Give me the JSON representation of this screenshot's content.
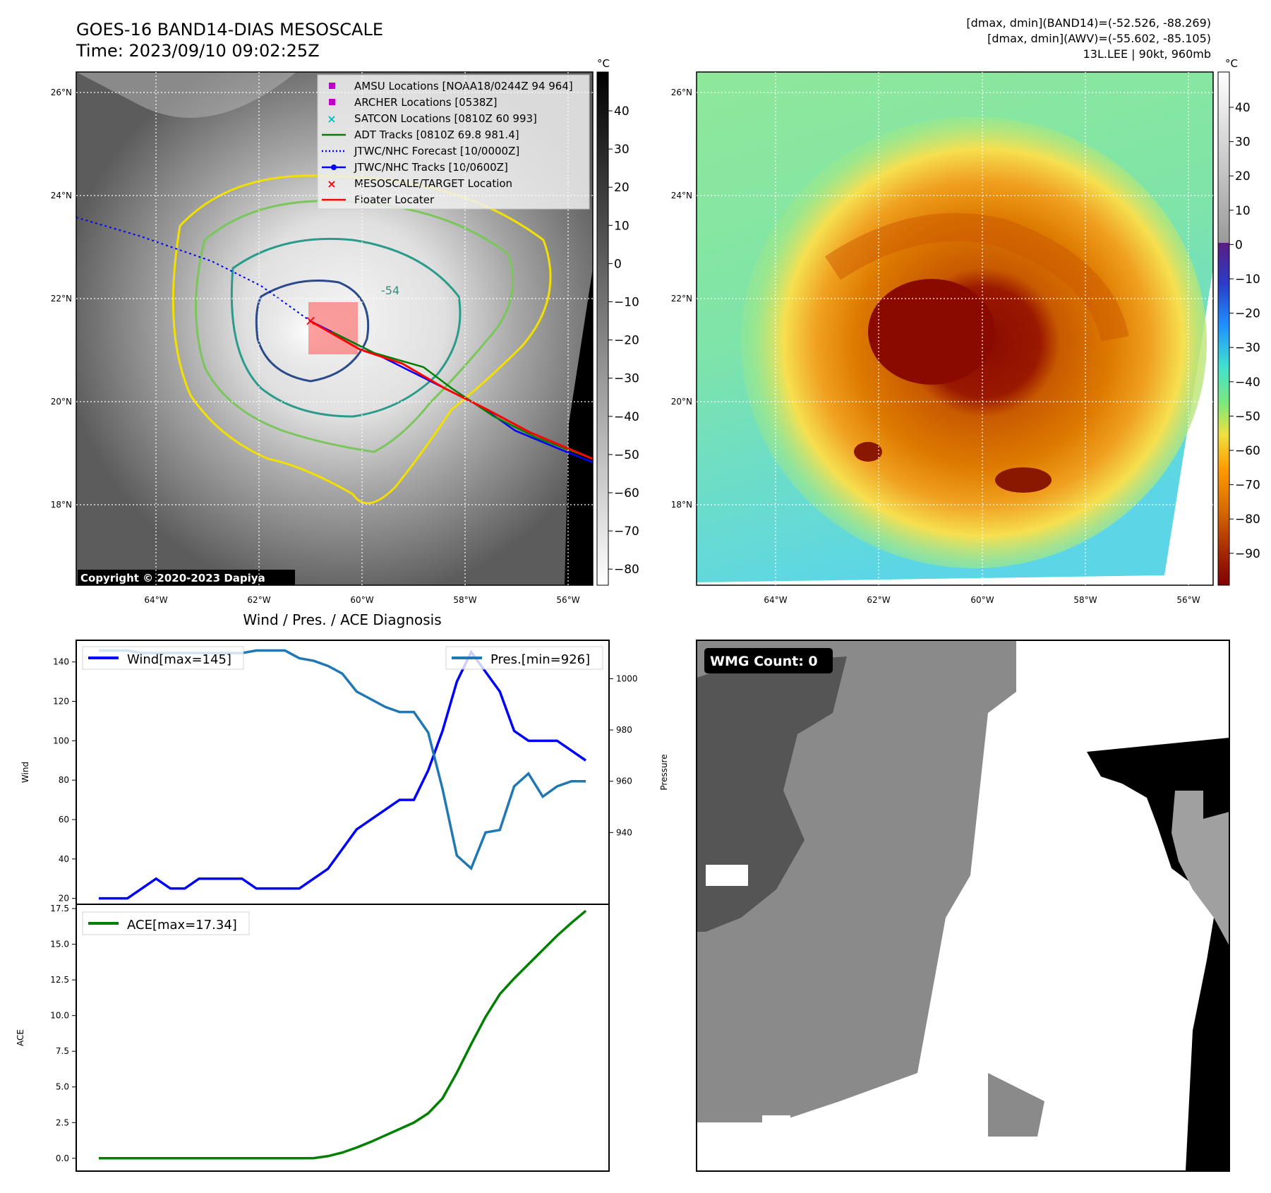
{
  "header": {
    "title": "GOES-16 BAND14-DIAS MESOSCALE",
    "time": "Time: 2023/09/10 09:02:25Z",
    "stats_band14": "[dmax, dmin](BAND14)=(-52.526, -88.269)",
    "stats_awv": "[dmax, dmin](AWV)=(-55.602, -85.105)",
    "storm": "13L.LEE | 90kt, 960mb"
  },
  "map": {
    "lat_labels": [
      "26°N",
      "24°N",
      "22°N",
      "20°N",
      "18°N"
    ],
    "lon_labels": [
      "64°W",
      "62°W",
      "60°W",
      "58°W",
      "56°W"
    ],
    "copyright": "Copyright © 2020-2023 Dapiya",
    "contour_label": "-54",
    "legend": [
      {
        "label": "AMSU Locations [NOAA18/0244Z 94 964]",
        "marker": "square",
        "color": "#c000c0"
      },
      {
        "label": "ARCHER Locations [0538Z]",
        "marker": "square",
        "color": "#c000c0"
      },
      {
        "label": "SATCON Locations [0810Z 60 993]",
        "marker": "x",
        "color": "#00bfbf"
      },
      {
        "label": "ADT Tracks [0810Z 69.8 981.4]",
        "marker": "line",
        "color": "#008000"
      },
      {
        "label": "JTWC/NHC Forecast [10/0000Z]",
        "marker": "dotted",
        "color": "#0000ff"
      },
      {
        "label": "JTWC/NHC Tracks [10/0600Z]",
        "marker": "line-dot",
        "color": "#0000ff"
      },
      {
        "label": "MESOSCALE/TARGET Location",
        "marker": "x",
        "color": "#ff0000"
      },
      {
        "label": "Floater Locater",
        "marker": "line",
        "color": "#ff0000"
      }
    ]
  },
  "colorbars": {
    "unit": "°C",
    "left_ticks": [
      "40",
      "30",
      "20",
      "10",
      "0",
      "−10",
      "−20",
      "−30",
      "−40",
      "−50",
      "−60",
      "−70",
      "−80"
    ],
    "right_ticks": [
      "40",
      "30",
      "20",
      "10",
      "0",
      "−10",
      "−20",
      "−30",
      "−40",
      "−50",
      "−60",
      "−70",
      "−80",
      "−90"
    ]
  },
  "wmg": {
    "label": "WMG Count: 0"
  },
  "chart_data": [
    {
      "type": "line",
      "title": "Wind / Pres. / ACE Diagnosis",
      "ylabel": "Wind",
      "y2label": "Pressure",
      "ylim": [
        17,
        151
      ],
      "y2lim": [
        912,
        1015
      ],
      "yticks": [
        20,
        40,
        60,
        80,
        100,
        120,
        140
      ],
      "y2ticks": [
        940,
        960,
        980,
        1000
      ],
      "series": [
        {
          "name": "Wind[max=145]",
          "color": "#0000ff",
          "axis": "left",
          "values": [
            20,
            20,
            20,
            25,
            30,
            25,
            25,
            30,
            30,
            30,
            30,
            25,
            25,
            25,
            25,
            30,
            35,
            45,
            55,
            60,
            65,
            70,
            70,
            85,
            105,
            130,
            145,
            135,
            125,
            105,
            100,
            100,
            100,
            95,
            90
          ]
        },
        {
          "name": "Pres.[min=926]",
          "color": "#1f77b4",
          "axis": "right",
          "values": [
            1011,
            1011,
            1011,
            1010,
            1010,
            1010,
            1010,
            1010,
            1010,
            1010,
            1010,
            1011,
            1011,
            1011,
            1008,
            1007,
            1005,
            1002,
            995,
            992,
            989,
            987,
            987,
            979,
            957,
            931,
            926,
            940,
            941,
            958,
            963,
            954,
            958,
            960,
            960
          ]
        }
      ]
    },
    {
      "type": "line",
      "ylabel": "ACE",
      "ylim": [
        -0.9,
        17.8
      ],
      "yticks": [
        "0.0",
        "2.5",
        "5.0",
        "7.5",
        "10.0",
        "12.5",
        "15.0",
        "17.5"
      ],
      "series": [
        {
          "name": "ACE[max=17.34]",
          "color": "#008000",
          "values": [
            0,
            0,
            0,
            0,
            0,
            0,
            0,
            0,
            0,
            0,
            0,
            0,
            0,
            0,
            0,
            0.01,
            0.15,
            0.4,
            0.75,
            1.15,
            1.6,
            2.05,
            2.5,
            3.15,
            4.2,
            6.0,
            8.0,
            9.9,
            11.5,
            12.6,
            13.6,
            14.6,
            15.6,
            16.5,
            17.34
          ]
        }
      ]
    }
  ]
}
